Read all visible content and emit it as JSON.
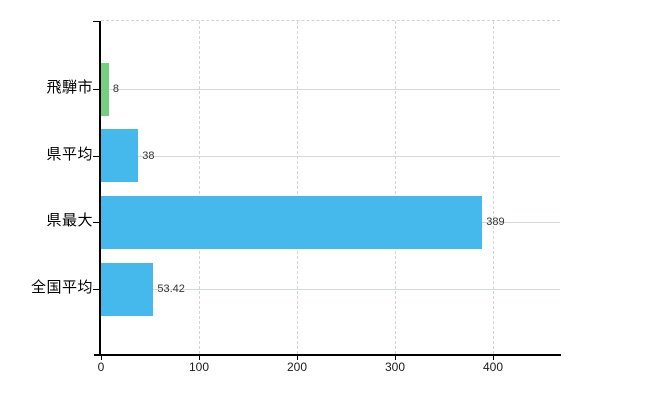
{
  "chart_data": {
    "type": "bar",
    "orientation": "horizontal",
    "title": "",
    "xlabel": "",
    "ylabel": "",
    "categories": [
      "飛騨市",
      "県平均",
      "県最大",
      "全国平均"
    ],
    "values": [
      8,
      38,
      389,
      53.42
    ],
    "value_labels": [
      "8",
      "38",
      "389",
      "53.42"
    ],
    "series": [
      {
        "name": "value",
        "values": [
          8,
          38,
          389,
          53.42
        ]
      }
    ],
    "bar_colors": [
      "#77cd80",
      "#45b9eb",
      "#45b9eb",
      "#45b9eb"
    ],
    "x_ticks": [
      0,
      100,
      200,
      300,
      400
    ],
    "x_tick_labels": [
      "0",
      "100",
      "200",
      "300",
      "400"
    ],
    "xlim": [
      0,
      468
    ],
    "grid": "on",
    "gridlines": {
      "horizontal": "solid",
      "vertical": "dashed"
    },
    "legend_position": "none"
  },
  "colors": {
    "background": "#ffffff",
    "bar_blue": "#45b9eb",
    "bar_green": "#77cd80",
    "h_gridline": "#d2dcd2",
    "v_gridline": "#d9d2d8",
    "top_border": "#d3d3d3",
    "axis": "#000000",
    "tick_label": "#1c1c1c",
    "value_label": "#333333"
  }
}
